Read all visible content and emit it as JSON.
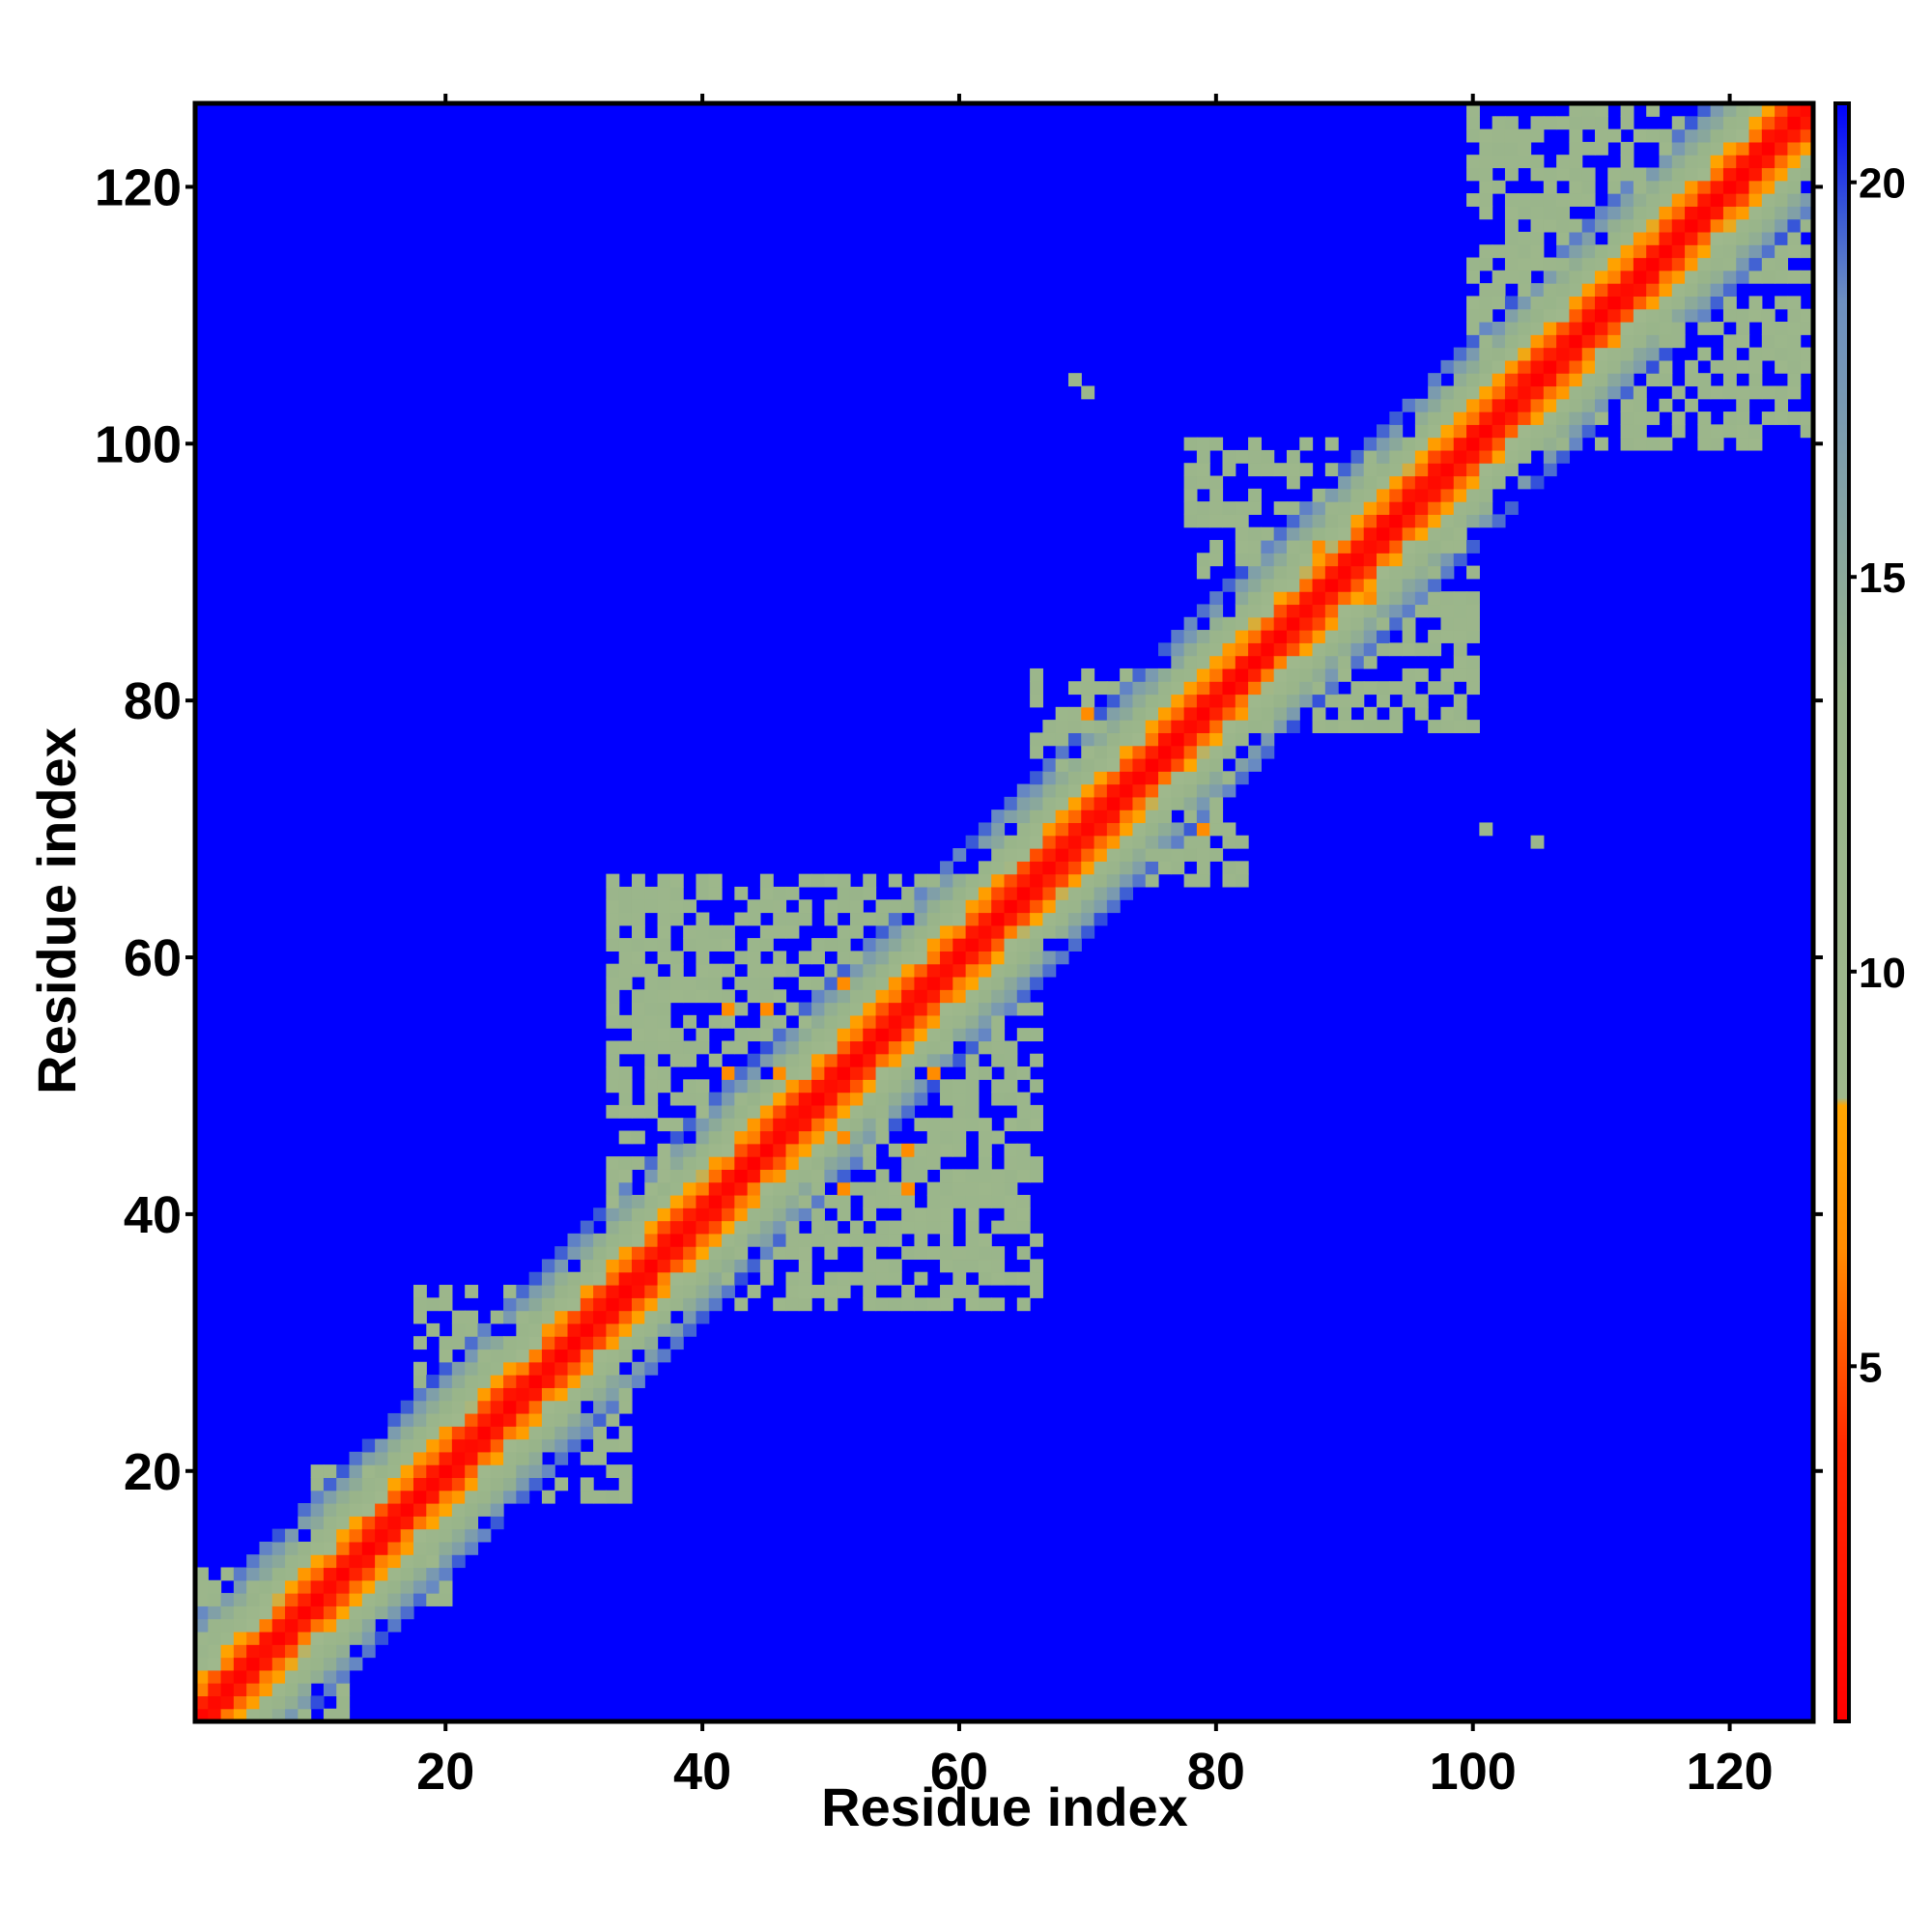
{
  "chart_data": {
    "type": "heatmap",
    "title": "",
    "xlabel": "Residue index",
    "ylabel": "Residue index",
    "n_residues": 126,
    "xlim": [
      1,
      126
    ],
    "ylim": [
      1,
      126
    ],
    "x_ticks": [
      20,
      40,
      60,
      80,
      100,
      120
    ],
    "y_ticks": [
      20,
      40,
      60,
      80,
      100,
      120
    ],
    "colorbar": {
      "ticks": [
        5,
        10,
        15,
        20
      ],
      "range": [
        0.5,
        21
      ],
      "stops": [
        {
          "value": 0.5,
          "color": "#ff0000"
        },
        {
          "value": 4.0,
          "color": "#ff2a00"
        },
        {
          "value": 6.5,
          "color": "#ff8c00"
        },
        {
          "value": 8.3,
          "color": "#ffa500"
        },
        {
          "value": 8.4,
          "color": "#9fb88c"
        },
        {
          "value": 13.5,
          "color": "#98b48a"
        },
        {
          "value": 18.5,
          "color": "#6d8fc0"
        },
        {
          "value": 19.6,
          "color": "#3a5ad6"
        },
        {
          "value": 21.0,
          "color": "#0000ff"
        }
      ]
    },
    "background_color": "#0000ff",
    "diagonal_profile": [
      {
        "offset": 0,
        "value": 0.8
      },
      {
        "offset": 1,
        "value": 2.5
      },
      {
        "offset": 2,
        "value": 5.5
      },
      {
        "offset": 3,
        "value": 8.0
      },
      {
        "offset": 4,
        "value": 10.5
      },
      {
        "offset": 5,
        "value": 12.5
      },
      {
        "offset": 6,
        "value": 14.5
      },
      {
        "offset": 7,
        "value": 16.5
      },
      {
        "offset": 8,
        "value": 19.0
      }
    ],
    "contact_regions": [
      {
        "i": [
          1,
          12
        ],
        "j": [
          1,
          12
        ],
        "value": 11.5
      },
      {
        "i": [
          10,
          20
        ],
        "j": [
          10,
          20
        ],
        "value": 11
      },
      {
        "i": [
          18,
          34
        ],
        "j": [
          18,
          34
        ],
        "value": 11
      },
      {
        "i": [
          33,
          48
        ],
        "j": [
          33,
          48
        ],
        "value": 10
      },
      {
        "i": [
          34,
          66
        ],
        "j": [
          33,
          48
        ],
        "value": 11
      },
      {
        "i": [
          44,
          66
        ],
        "j": [
          44,
          66
        ],
        "value": 12
      },
      {
        "i": [
          66,
          82
        ],
        "j": [
          66,
          82
        ],
        "value": 11
      },
      {
        "i": [
          78,
          100
        ],
        "j": [
          78,
          100
        ],
        "value": 11
      },
      {
        "i": [
          100,
          126
        ],
        "j": [
          100,
          126
        ],
        "value": 11
      }
    ],
    "orange_spots": [
      {
        "i": 45,
        "j": 56
      },
      {
        "i": 51,
        "j": 42
      },
      {
        "i": 56,
        "j": 42
      },
      {
        "i": 58,
        "j": 51
      },
      {
        "i": 46,
        "j": 51
      },
      {
        "i": 79,
        "j": 70
      },
      {
        "i": 88,
        "j": 92
      }
    ],
    "isolated_points": [
      {
        "i": 69,
        "j": 105
      },
      {
        "i": 70,
        "j": 104
      },
      {
        "i": 101,
        "j": 70
      },
      {
        "i": 105,
        "j": 69
      }
    ]
  }
}
